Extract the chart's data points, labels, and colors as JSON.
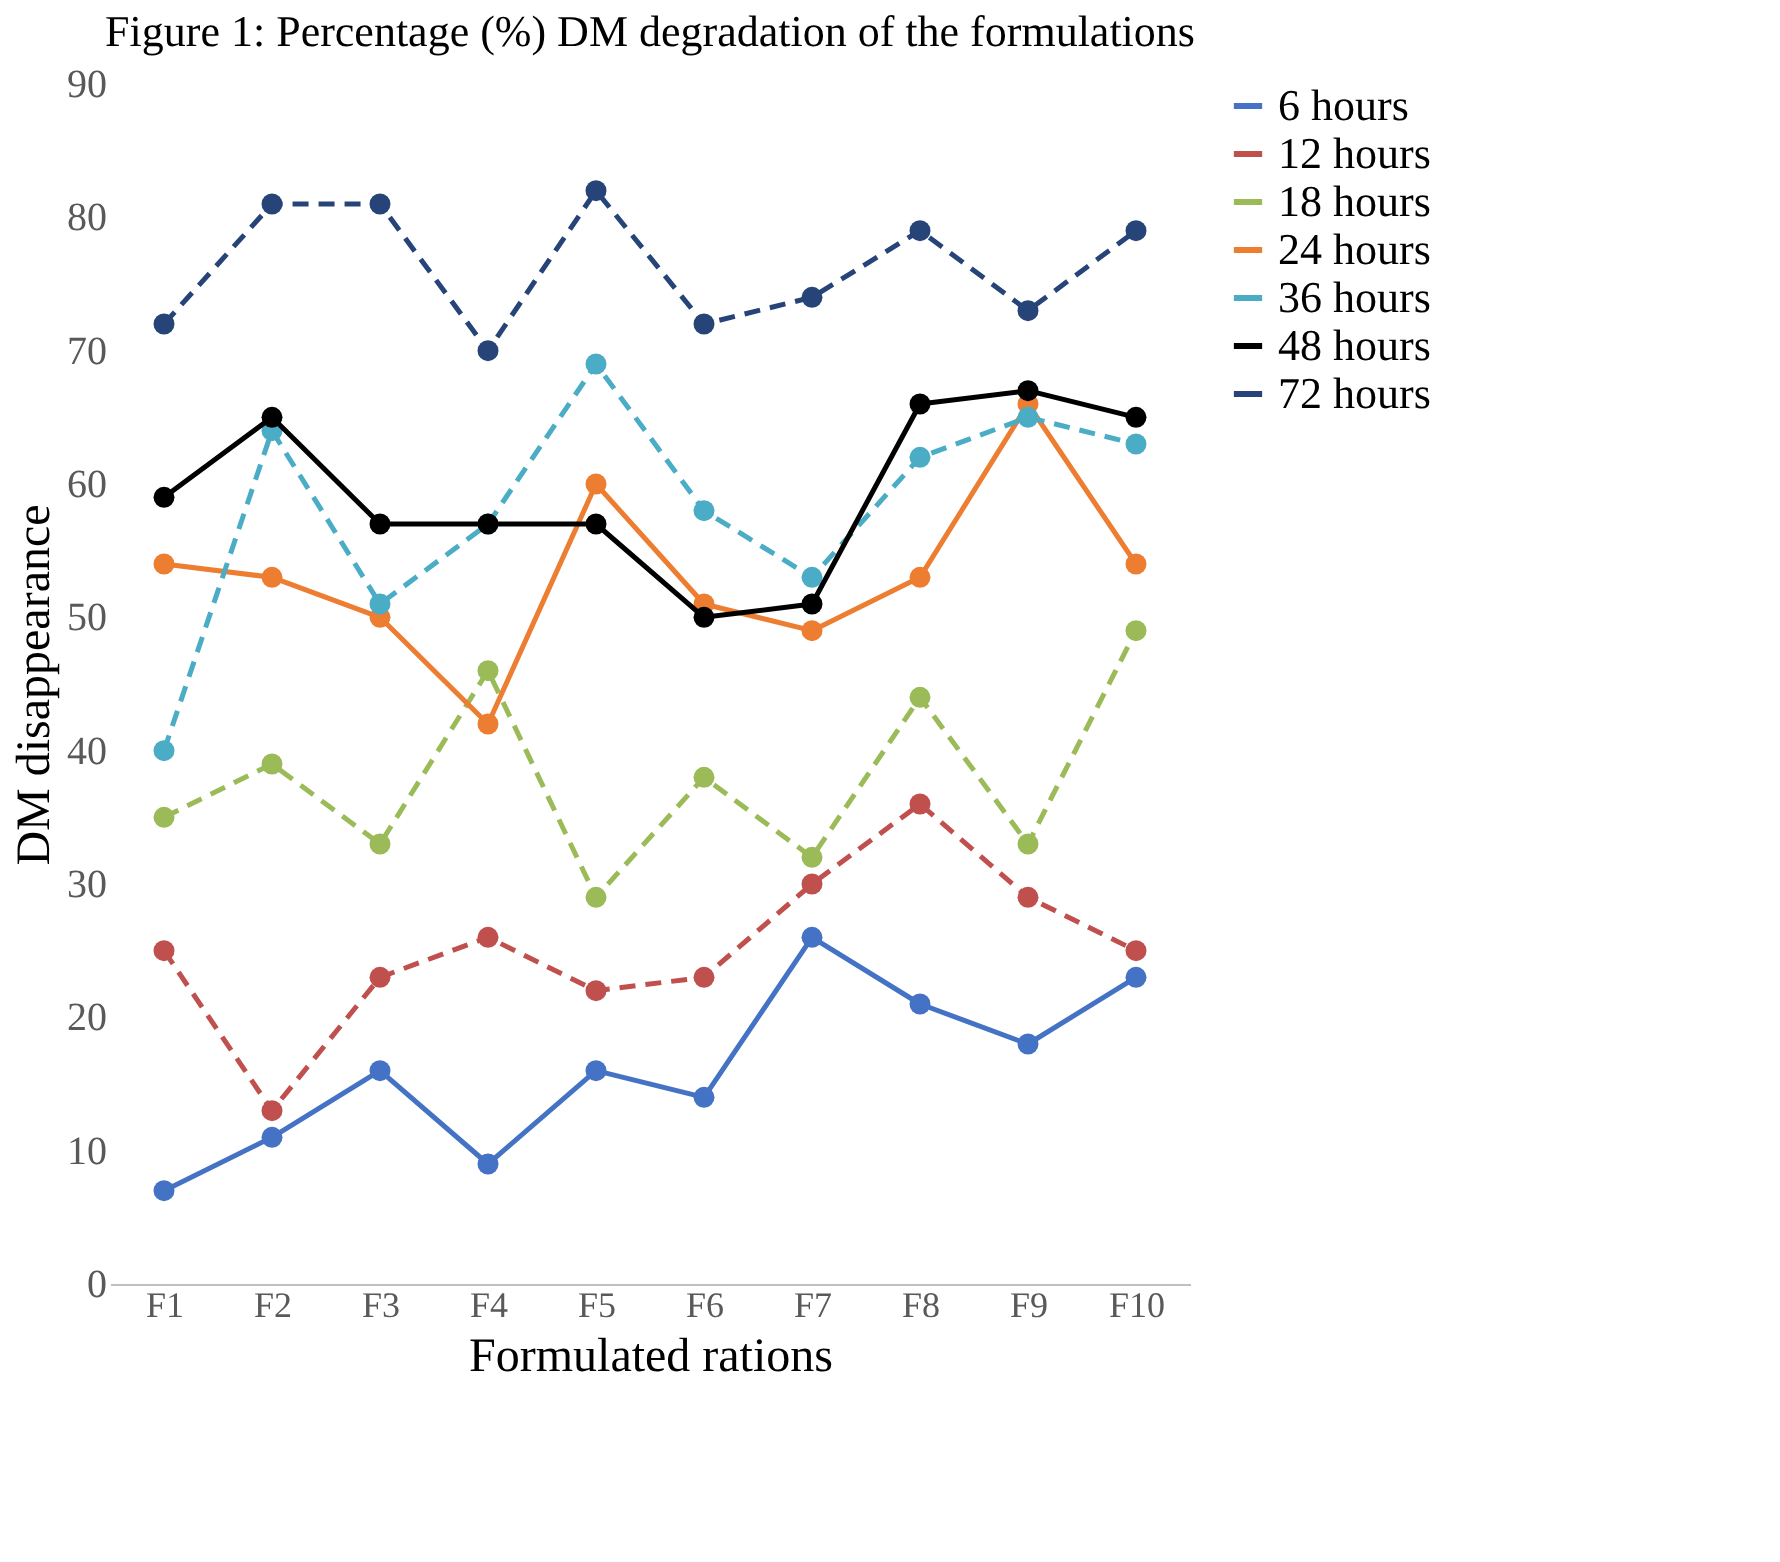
{
  "chart_data": {
    "type": "line",
    "title": "Figure 1: Percentage (%) DM degradation of the formulations",
    "xlabel": "Formulated rations",
    "ylabel": "DM disappearance",
    "categories": [
      "F1",
      "F2",
      "F3",
      "F4",
      "F5",
      "F6",
      "F7",
      "F8",
      "F9",
      "F10"
    ],
    "ylim": [
      0,
      90
    ],
    "yticks": [
      0,
      10,
      20,
      30,
      40,
      50,
      60,
      70,
      80,
      90
    ],
    "grid": false,
    "legend": "right",
    "marker": "circle",
    "series": [
      {
        "name": "6 hours",
        "color": "#4472c4",
        "line_style": "solid",
        "values": [
          7,
          11,
          16,
          9,
          16,
          14,
          26,
          21,
          18,
          23
        ]
      },
      {
        "name": "12 hours",
        "color": "#c0504d",
        "line_style": "dashed",
        "values": [
          25,
          13,
          23,
          26,
          22,
          23,
          30,
          36,
          29,
          25
        ]
      },
      {
        "name": "18 hours",
        "color": "#9bbb59",
        "line_style": "dashed",
        "values": [
          35,
          39,
          33,
          46,
          29,
          38,
          32,
          44,
          33,
          49
        ]
      },
      {
        "name": "24 hours",
        "color": "#ed7d31",
        "line_style": "solid",
        "values": [
          54,
          53,
          50,
          42,
          60,
          51,
          49,
          53,
          66,
          54
        ]
      },
      {
        "name": "36 hours",
        "color": "#4bacc6",
        "line_style": "dashed",
        "values": [
          40,
          64,
          51,
          57,
          69,
          58,
          53,
          62,
          65,
          63
        ]
      },
      {
        "name": "48 hours",
        "color": "#000000",
        "line_style": "solid",
        "values": [
          59,
          65,
          57,
          57,
          57,
          50,
          51,
          66,
          67,
          65
        ]
      },
      {
        "name": "72 hours",
        "color": "#264478",
        "line_style": "dashed",
        "values": [
          72,
          81,
          81,
          70,
          82,
          72,
          74,
          79,
          73,
          79
        ]
      }
    ]
  }
}
